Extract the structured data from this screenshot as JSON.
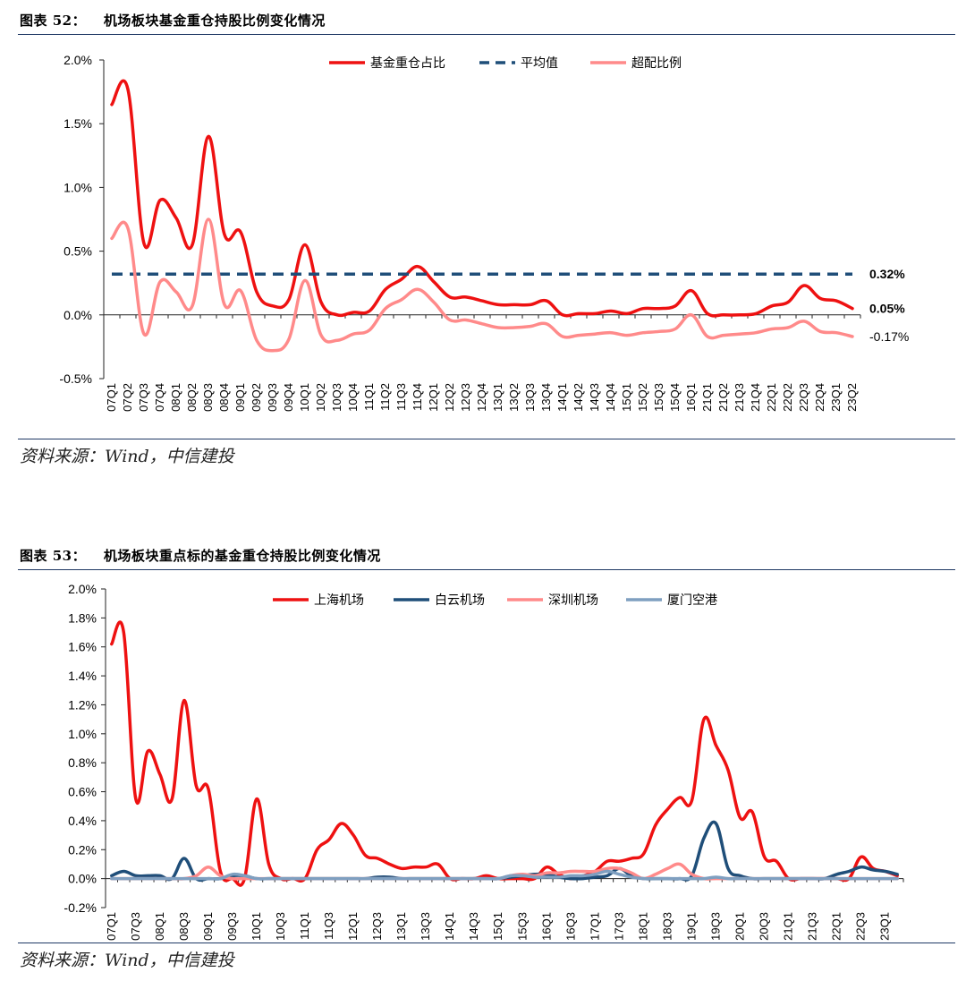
{
  "figures": [
    {
      "label": "图表 52：",
      "title": "机场板块基金重仓持股比例变化情况",
      "source": "资料来源：Wind，中信建投"
    },
    {
      "label": "图表 53：",
      "title": "机场板块重点标的基金重仓持股比例变化情况",
      "source": "资料来源：Wind，中信建投"
    }
  ],
  "chart_data": [
    {
      "type": "line",
      "x": [
        "07Q1",
        "07Q2",
        "07Q3",
        "07Q4",
        "08Q1",
        "08Q2",
        "08Q3",
        "08Q4",
        "09Q1",
        "09Q2",
        "09Q3",
        "09Q4",
        "10Q1",
        "10Q2",
        "10Q3",
        "10Q4",
        "11Q1",
        "11Q2",
        "11Q3",
        "11Q4",
        "12Q1",
        "12Q2",
        "12Q3",
        "12Q4",
        "13Q1",
        "13Q2",
        "13Q3",
        "13Q4",
        "14Q1",
        "14Q2",
        "14Q3",
        "14Q4",
        "15Q1",
        "15Q2",
        "15Q3",
        "15Q4",
        "16Q1",
        "21Q1",
        "21Q2",
        "21Q3",
        "21Q4",
        "22Q1",
        "22Q2",
        "22Q3",
        "22Q4",
        "23Q1",
        "23Q2"
      ],
      "x_tick_labels": [
        "07Q1",
        "07Q2",
        "07Q3",
        "07Q4",
        "08Q1",
        "08Q2",
        "08Q3",
        "08Q4",
        "09Q1",
        "09Q2",
        "09Q3",
        "09Q4",
        "10Q1",
        "10Q2",
        "10Q3",
        "10Q4",
        "11Q1",
        "11Q2",
        "11Q3",
        "11Q4",
        "12Q1",
        "12Q2",
        "12Q3",
        "12Q4",
        "13Q1",
        "13Q2",
        "13Q3",
        "13Q4",
        "14Q1",
        "14Q2",
        "14Q3",
        "14Q4",
        "15Q1",
        "15Q2",
        "15Q3",
        "15Q4",
        "16Q1",
        "21Q1",
        "21Q2",
        "21Q3",
        "21Q4",
        "22Q1",
        "22Q2",
        "22Q3",
        "22Q4",
        "23Q1",
        "23Q2"
      ],
      "y_ticks": [
        "2.0%",
        "1.5%",
        "1.0%",
        "0.5%",
        "0.0%",
        "-0.5%"
      ],
      "ylim": [
        -0.5,
        2.0
      ],
      "y_unit": "%",
      "legend_position": "top",
      "series": [
        {
          "name": "基金重仓占比",
          "color": "#ee1111",
          "style": "solid",
          "width": 3.5,
          "values": [
            1.65,
            1.77,
            0.56,
            0.9,
            0.76,
            0.55,
            1.4,
            0.63,
            0.65,
            0.18,
            0.07,
            0.12,
            0.55,
            0.1,
            0.0,
            0.02,
            0.03,
            0.2,
            0.28,
            0.38,
            0.26,
            0.14,
            0.14,
            0.11,
            0.08,
            0.08,
            0.08,
            0.11,
            0.0,
            0.01,
            0.01,
            0.03,
            0.01,
            0.05,
            0.05,
            0.07,
            0.19,
            0.01,
            0.0,
            0.0,
            0.01,
            0.07,
            0.1,
            0.23,
            0.13,
            0.11,
            0.05
          ]
        },
        {
          "name": "平均值",
          "color": "#1f4e79",
          "style": "dashed",
          "width": 3.5,
          "values": [
            0.32,
            0.32,
            0.32,
            0.32,
            0.32,
            0.32,
            0.32,
            0.32,
            0.32,
            0.32,
            0.32,
            0.32,
            0.32,
            0.32,
            0.32,
            0.32,
            0.32,
            0.32,
            0.32,
            0.32,
            0.32,
            0.32,
            0.32,
            0.32,
            0.32,
            0.32,
            0.32,
            0.32,
            0.32,
            0.32,
            0.32,
            0.32,
            0.32,
            0.32,
            0.32,
            0.32,
            0.32,
            0.32,
            0.32,
            0.32,
            0.32,
            0.32,
            0.32,
            0.32,
            0.32,
            0.32,
            0.32
          ]
        },
        {
          "name": "超配比例",
          "color": "#ff8a8a",
          "style": "solid",
          "width": 3.5,
          "values": [
            0.6,
            0.68,
            -0.15,
            0.26,
            0.18,
            0.07,
            0.75,
            0.08,
            0.19,
            -0.2,
            -0.28,
            -0.19,
            0.27,
            -0.16,
            -0.2,
            -0.15,
            -0.12,
            0.05,
            0.12,
            0.2,
            0.1,
            -0.04,
            -0.04,
            -0.07,
            -0.1,
            -0.1,
            -0.09,
            -0.07,
            -0.17,
            -0.16,
            -0.15,
            -0.14,
            -0.16,
            -0.14,
            -0.13,
            -0.11,
            0.0,
            -0.17,
            -0.16,
            -0.15,
            -0.14,
            -0.11,
            -0.1,
            -0.05,
            -0.13,
            -0.14,
            -0.17
          ]
        }
      ],
      "end_labels": [
        "0.32%",
        "0.05%",
        "-0.17%"
      ]
    },
    {
      "type": "line",
      "x": [
        "07Q1",
        "07Q2",
        "07Q3",
        "07Q4",
        "08Q1",
        "08Q2",
        "08Q3",
        "08Q4",
        "09Q1",
        "09Q2",
        "09Q3",
        "09Q4",
        "10Q1",
        "10Q2",
        "10Q3",
        "10Q4",
        "11Q1",
        "11Q2",
        "11Q3",
        "11Q4",
        "12Q1",
        "12Q2",
        "12Q3",
        "12Q4",
        "13Q1",
        "13Q2",
        "13Q3",
        "13Q4",
        "14Q1",
        "14Q2",
        "14Q3",
        "14Q4",
        "15Q1",
        "15Q2",
        "15Q3",
        "15Q4",
        "16Q1",
        "16Q2",
        "16Q3",
        "16Q4",
        "17Q1",
        "17Q2",
        "17Q3",
        "17Q4",
        "18Q1",
        "18Q2",
        "18Q3",
        "18Q4",
        "19Q1",
        "19Q2",
        "19Q3",
        "19Q4",
        "20Q1",
        "20Q2",
        "20Q3",
        "20Q4",
        "21Q1",
        "21Q2",
        "21Q3",
        "21Q4",
        "22Q1",
        "22Q2",
        "22Q3",
        "22Q4",
        "23Q1",
        "23Q2"
      ],
      "x_tick_labels": [
        "07Q1",
        "07Q3",
        "08Q1",
        "08Q3",
        "09Q1",
        "09Q3",
        "10Q1",
        "10Q3",
        "11Q1",
        "11Q3",
        "12Q1",
        "12Q3",
        "13Q1",
        "13Q3",
        "14Q1",
        "14Q3",
        "15Q1",
        "15Q3",
        "16Q1",
        "16Q3",
        "17Q1",
        "17Q3",
        "18Q1",
        "18Q3",
        "19Q1",
        "19Q3",
        "20Q1",
        "20Q3",
        "21Q1",
        "21Q3",
        "22Q1",
        "22Q3",
        "23Q1"
      ],
      "y_ticks": [
        "2.0%",
        "1.8%",
        "1.6%",
        "1.4%",
        "1.2%",
        "1.0%",
        "0.8%",
        "0.6%",
        "0.4%",
        "0.2%",
        "0.0%",
        "-0.2%"
      ],
      "ylim": [
        -0.2,
        2.0
      ],
      "y_unit": "%",
      "legend_position": "top",
      "series": [
        {
          "name": "上海机场",
          "color": "#ee1111",
          "style": "solid",
          "width": 3.5,
          "values": [
            1.62,
            1.7,
            0.55,
            0.88,
            0.72,
            0.55,
            1.23,
            0.64,
            0.62,
            0.05,
            0.0,
            0.0,
            0.55,
            0.1,
            0.0,
            0.0,
            0.0,
            0.2,
            0.27,
            0.38,
            0.3,
            0.16,
            0.14,
            0.1,
            0.07,
            0.08,
            0.08,
            0.1,
            0.0,
            0.0,
            0.0,
            0.02,
            0.0,
            0.0,
            0.0,
            0.0,
            0.08,
            0.03,
            0.0,
            0.02,
            0.05,
            0.12,
            0.12,
            0.14,
            0.17,
            0.37,
            0.48,
            0.56,
            0.54,
            1.1,
            0.92,
            0.75,
            0.42,
            0.46,
            0.15,
            0.12,
            0.0,
            0.0,
            0.0,
            0.0,
            0.0,
            0.0,
            0.15,
            0.07,
            0.05,
            0.02
          ]
        },
        {
          "name": "白云机场",
          "color": "#1f4e79",
          "style": "solid",
          "width": 3.5,
          "values": [
            0.02,
            0.05,
            0.02,
            0.02,
            0.02,
            0.0,
            0.14,
            0.0,
            0.0,
            0.0,
            0.02,
            0.02,
            0.0,
            0.0,
            0.0,
            0.0,
            0.0,
            0.0,
            0.0,
            0.0,
            0.0,
            0.0,
            0.01,
            0.01,
            0.0,
            0.0,
            0.0,
            0.0,
            0.0,
            0.0,
            0.0,
            0.0,
            0.0,
            0.01,
            0.02,
            0.03,
            0.03,
            0.01,
            0.0,
            0.0,
            0.01,
            0.02,
            0.07,
            0.02,
            0.0,
            0.0,
            0.0,
            0.0,
            0.02,
            0.28,
            0.38,
            0.07,
            0.02,
            0.0,
            0.0,
            0.0,
            0.0,
            0.0,
            0.0,
            0.0,
            0.03,
            0.05,
            0.08,
            0.06,
            0.05,
            0.03
          ]
        },
        {
          "name": "深圳机场",
          "color": "#ff8a8a",
          "style": "solid",
          "width": 3.5,
          "values": [
            0.0,
            0.0,
            0.0,
            0.0,
            0.0,
            0.0,
            0.0,
            0.02,
            0.08,
            0.02,
            0.0,
            0.0,
            0.0,
            0.0,
            0.0,
            0.0,
            0.0,
            0.0,
            0.0,
            0.0,
            0.0,
            0.0,
            0.0,
            0.0,
            0.0,
            0.0,
            0.0,
            0.0,
            0.0,
            0.0,
            0.0,
            0.0,
            0.0,
            0.02,
            0.03,
            0.02,
            0.04,
            0.04,
            0.05,
            0.05,
            0.05,
            0.07,
            0.07,
            0.04,
            0.0,
            0.03,
            0.07,
            0.1,
            0.03,
            0.0,
            0.0,
            0.0,
            0.0,
            0.0,
            0.0,
            0.0,
            0.0,
            0.0,
            0.0,
            0.0,
            0.0,
            0.0,
            0.0,
            0.0,
            0.0,
            0.0
          ]
        },
        {
          "name": "厦门空港",
          "color": "#7f9fc0",
          "style": "solid",
          "width": 3.5,
          "values": [
            0.0,
            0.0,
            0.0,
            0.0,
            0.0,
            0.0,
            0.0,
            0.0,
            0.0,
            0.0,
            0.03,
            0.02,
            0.0,
            0.0,
            0.0,
            0.0,
            0.0,
            0.0,
            0.0,
            0.0,
            0.0,
            0.0,
            0.0,
            0.0,
            0.0,
            0.0,
            0.0,
            0.0,
            0.0,
            0.0,
            0.0,
            0.0,
            0.0,
            0.02,
            0.02,
            0.01,
            0.01,
            0.01,
            0.02,
            0.02,
            0.03,
            0.05,
            0.03,
            0.01,
            0.0,
            0.0,
            0.0,
            0.0,
            0.0,
            0.0,
            0.01,
            0.0,
            0.0,
            0.0,
            0.0,
            0.0,
            0.0,
            0.0,
            0.0,
            0.0,
            0.0,
            0.0,
            0.0,
            0.0,
            0.0,
            0.0
          ]
        }
      ]
    }
  ]
}
